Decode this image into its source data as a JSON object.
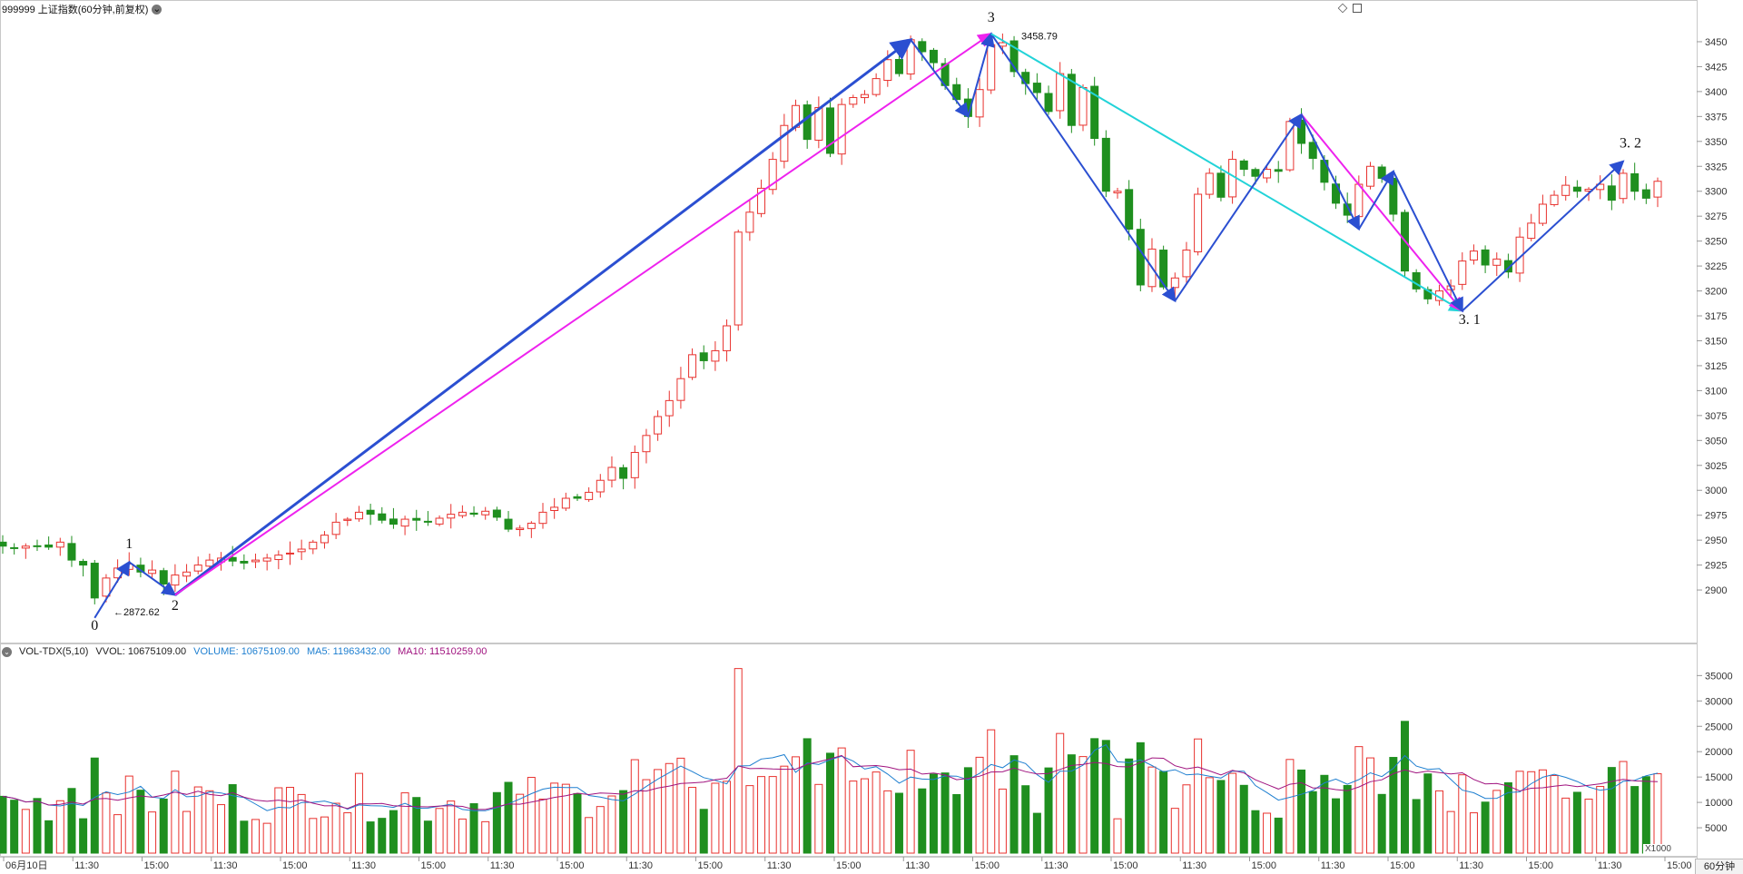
{
  "header": {
    "title": "999999 上证指数(60分钟,前复权)"
  },
  "indicator": {
    "title": "VOL-TDX(5,10)",
    "vvol": "VVOL: 10675109.00",
    "volume": "VOLUME: 10675109.00",
    "ma5": "MA5: 11963432.00",
    "ma10": "MA10: 11510259.00",
    "unit": "X1000"
  },
  "period": "60分钟",
  "colors": {
    "up": "#e8322e",
    "down": "#1f8f1f",
    "arrow_blue": "#2b4fd1",
    "arrow_magenta": "#ee22ee",
    "arrow_cyan": "#22d3d8",
    "ma5": "#1e7fd0",
    "ma10": "#a0137f"
  },
  "chart_data": [
    {
      "type": "candlestick",
      "ylim": [
        2860,
        3470
      ],
      "yticks": [
        2900,
        2925,
        2950,
        2975,
        3000,
        3025,
        3050,
        3075,
        3100,
        3125,
        3150,
        3175,
        3200,
        3225,
        3250,
        3275,
        3300,
        3325,
        3350,
        3375,
        3400,
        3425,
        3450
      ],
      "xticks": [
        "06月10日",
        "11:30",
        "15:00",
        "11:30",
        "15:00",
        "11:30",
        "15:00",
        "11:30",
        "15:00",
        "11:30",
        "15:00",
        "11:30",
        "15:00",
        "11:30",
        "15:00",
        "11:30",
        "15:00",
        "11:30",
        "15:00",
        "11:30",
        "15:00",
        "11:30",
        "15:00",
        "11:30",
        "15:00"
      ],
      "closes": [
        2944,
        2942,
        2944,
        2944,
        2943,
        2948,
        2930,
        2925,
        2892,
        2912,
        2922,
        2926,
        2918,
        2920,
        2906,
        2915,
        2918,
        2925,
        2930,
        2932,
        2929,
        2927,
        2930,
        2932,
        2935,
        2937,
        2941,
        2948,
        2955,
        2968,
        2971,
        2978,
        2976,
        2970,
        2966,
        2971,
        2970,
        2968,
        2972,
        2976,
        2978,
        2976,
        2979,
        2973,
        2961,
        2962,
        2967,
        2978,
        2983,
        2992,
        2992,
        2998,
        3010,
        3023,
        3012,
        3038,
        3055,
        3074,
        3090,
        3112,
        3136,
        3130,
        3140,
        3165,
        3259,
        3279,
        3303,
        3332,
        3366,
        3386,
        3352,
        3384,
        3338,
        3387,
        3394,
        3397,
        3413,
        3432,
        3418,
        3452,
        3440,
        3429,
        3406,
        3392,
        3375,
        3402,
        3447,
        3449,
        3420,
        3408,
        3399,
        3380,
        3418,
        3366,
        3404,
        3353,
        3300,
        3300,
        3262,
        3206,
        3242,
        3204,
        3213,
        3241,
        3297,
        3318,
        3294,
        3332,
        3322,
        3315,
        3322,
        3320,
        3370,
        3348,
        3333,
        3309,
        3288,
        3276,
        3307,
        3325,
        3313,
        3277,
        3220,
        3202,
        3192,
        3200,
        3205,
        3230,
        3240,
        3226,
        3232,
        3219,
        3254,
        3268,
        3287,
        3296,
        3306,
        3300,
        3302,
        3307,
        3291,
        3318,
        3300,
        3293,
        3310
      ],
      "series": [
        {
          "name": "VOLUME",
          "ylim": [
            0,
            39000
          ],
          "yticks": [
            5000,
            10000,
            15000,
            20000,
            25000,
            30000,
            35000
          ]
        },
        {
          "name": "MA5"
        },
        {
          "name": "MA10"
        }
      ],
      "annotations": [
        {
          "text": "0"
        },
        {
          "text": "1"
        },
        {
          "text": "2"
        },
        {
          "text": "3"
        },
        {
          "text": "3. 1"
        },
        {
          "text": "3. 2"
        },
        {
          "text": "←2872.62"
        },
        {
          "text": "3458.79"
        }
      ]
    }
  ]
}
